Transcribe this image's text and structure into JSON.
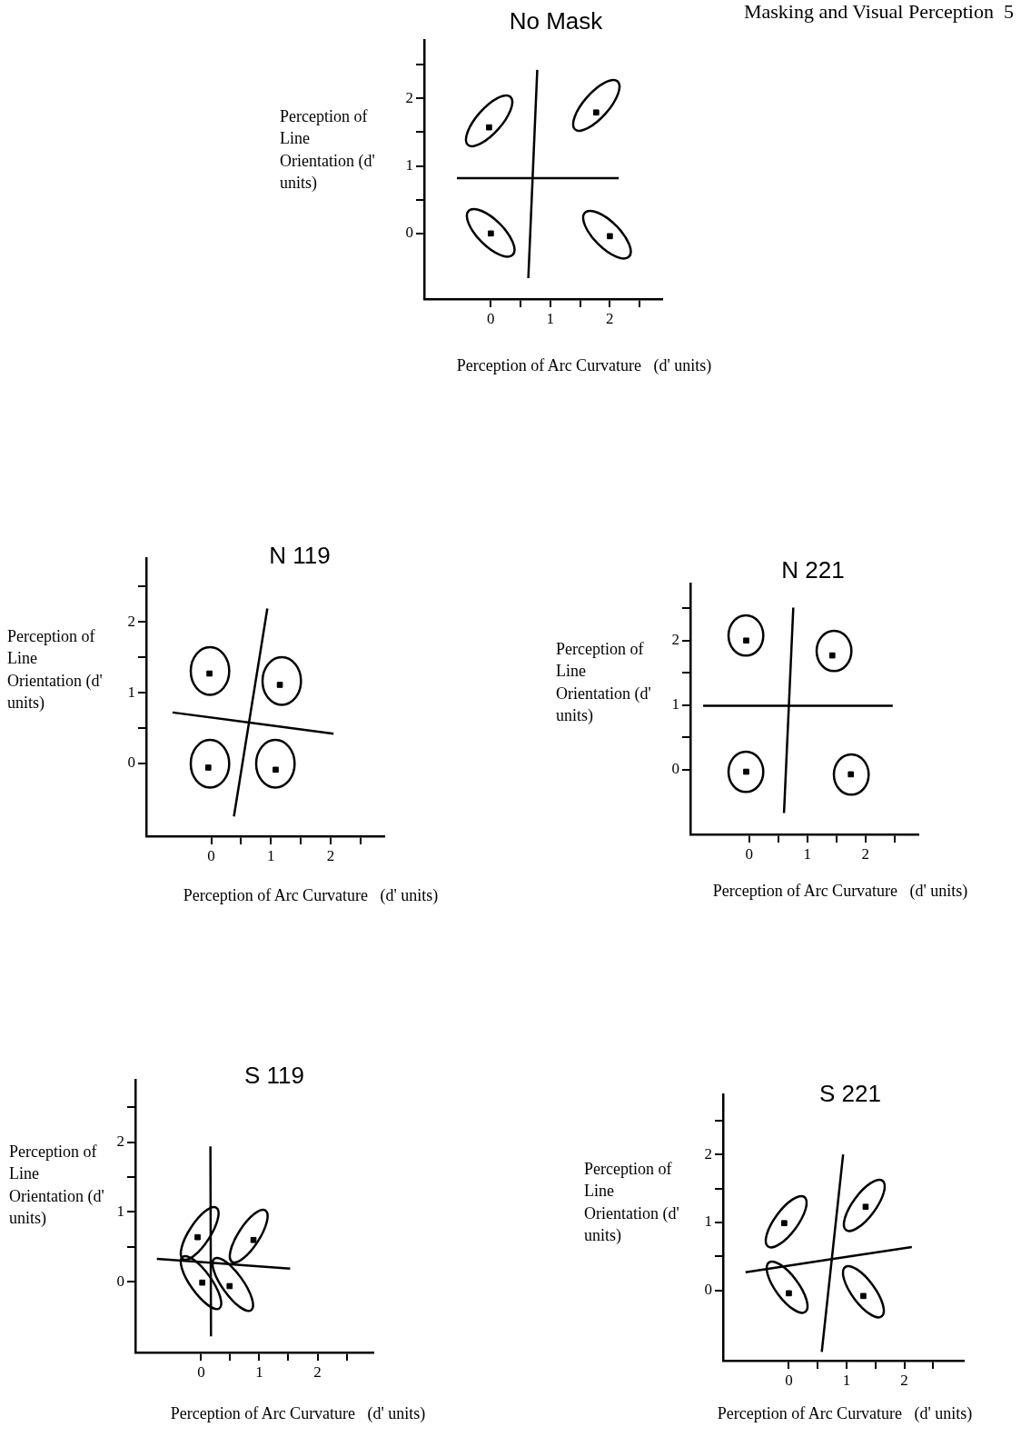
{
  "chart_data": [
    {
      "type": "scatter",
      "title": "No Mask",
      "xlabel": "Perception of Arc Curvature   (d' units)",
      "ylabel": "Perception of Line Orientation (d' units)",
      "annotations": [
        "Masking and Visual Perception  5"
      ],
      "grid": false,
      "xlim": [
        -1.12,
        2.88
      ],
      "ylim": [
        -0.97,
        2.86
      ],
      "xticks": [
        0,
        {
          "value": 0.5,
          "label": null
        },
        1,
        {
          "value": 1.5,
          "label": null
        },
        2,
        {
          "value": 2.5,
          "label": null
        }
      ],
      "yticks": [
        0,
        {
          "value": 0.5,
          "label": null
        },
        1,
        {
          "value": 1.5,
          "label": null
        },
        2,
        {
          "value": 2.5,
          "label": null
        }
      ],
      "series": [
        {
          "marker": "square",
          "color": "#000000",
          "x": [
            -0.03,
            1.77,
            0,
            2
          ],
          "values": [
            1.57,
            1.79,
            0,
            -0.04
          ]
        },
        {
          "type": "line",
          "color": "#000000",
          "x": [
            -0.57,
            2.15
          ],
          "values": [
            0.82,
            0.82
          ]
        },
        {
          "type": "line",
          "color": "#000000",
          "x": [
            0.78,
            0.63
          ],
          "values": [
            2.42,
            -0.66
          ]
        }
      ]
    },
    {
      "type": "scatter",
      "title": "N 119",
      "xlabel": "Perception of Arc Curvature   (d' units)",
      "ylabel": "Perception of Line Orientation (d' units)",
      "grid": false,
      "xlim": [
        -1.09,
        2.9
      ],
      "ylim": [
        -1.03,
        2.9
      ],
      "xticks": [
        0,
        {
          "value": 0.5,
          "label": null
        },
        1,
        {
          "value": 1.5,
          "label": null
        },
        2,
        {
          "value": 2.5,
          "label": null
        }
      ],
      "yticks": [
        0,
        {
          "value": 0.5,
          "label": null
        },
        1,
        {
          "value": 1.5,
          "label": null
        },
        2,
        {
          "value": 2.5,
          "label": null
        }
      ],
      "series": [
        {
          "marker": "square",
          "color": "#000000",
          "x": [
            -0.03,
            1.15,
            -0.05,
            1.08
          ],
          "values": [
            1.27,
            1.11,
            -0.06,
            -0.09
          ]
        },
        {
          "type": "line",
          "color": "#000000",
          "x": [
            0.94,
            0.38
          ],
          "values": [
            2.19,
            -0.75
          ]
        },
        {
          "type": "line",
          "color": "#000000",
          "x": [
            -0.65,
            2.05
          ],
          "values": [
            0.72,
            0.42
          ]
        }
      ]
    },
    {
      "type": "scatter",
      "title": "N 221",
      "xlabel": "Perception of Arc Curvature   (d' units)",
      "ylabel": "Perception of Line Orientation (d' units)",
      "grid": false,
      "xlim": [
        -1.01,
        2.91
      ],
      "ylim": [
        -1.0,
        2.88
      ],
      "xticks": [
        0,
        {
          "value": 0.5,
          "label": null
        },
        1,
        {
          "value": 1.5,
          "label": null
        },
        2,
        {
          "value": 2.5,
          "label": null
        }
      ],
      "yticks": [
        0,
        {
          "value": 0.5,
          "label": null
        },
        1,
        {
          "value": 1.5,
          "label": null
        },
        2,
        {
          "value": 2.5,
          "label": null
        }
      ],
      "series": [
        {
          "marker": "square",
          "color": "#000000",
          "x": [
            -0.05,
            1.43,
            -0.05,
            1.75
          ],
          "values": [
            2.0,
            1.77,
            -0.03,
            -0.07
          ]
        },
        {
          "type": "line",
          "color": "#000000",
          "x": [
            -0.79,
            2.47
          ],
          "values": [
            0.99,
            0.99
          ]
        },
        {
          "type": "line",
          "color": "#000000",
          "x": [
            0.76,
            0.6
          ],
          "values": [
            2.51,
            -0.67
          ]
        }
      ]
    },
    {
      "type": "scatter",
      "title": "S 119",
      "xlabel": "Perception of Arc Curvature   (d' units)",
      "ylabel": "Perception of Line Orientation (d' units)",
      "grid": false,
      "xlim": [
        -1.13,
        2.96
      ],
      "ylim": [
        -1.01,
        2.89
      ],
      "xticks": [
        0,
        {
          "value": 0.5,
          "label": null
        },
        1,
        {
          "value": 1.5,
          "label": null
        },
        2,
        {
          "value": 2.5,
          "label": null
        }
      ],
      "yticks": [
        0,
        {
          "value": 0.5,
          "label": null
        },
        1,
        {
          "value": 1.5,
          "label": null
        },
        2,
        {
          "value": 2.5,
          "label": null
        }
      ],
      "series": [
        {
          "marker": "square",
          "color": "#000000",
          "x": [
            -0.06,
            0.9,
            0.02,
            0.49
          ],
          "values": [
            0.64,
            0.6,
            -0.01,
            -0.06
          ]
        },
        {
          "type": "line",
          "color": "#000000",
          "x": [
            0.16,
            0.17
          ],
          "values": [
            1.94,
            -0.78
          ]
        },
        {
          "type": "line",
          "color": "#000000",
          "x": [
            -0.76,
            1.53
          ],
          "values": [
            0.33,
            0.19
          ]
        }
      ]
    },
    {
      "type": "scatter",
      "title": "S 221",
      "xlabel": "Perception of Arc Curvature   (d' units)",
      "ylabel": "Perception of Line Orientation (d' units)",
      "grid": false,
      "xlim": [
        -1.14,
        3.03
      ],
      "ylim": [
        -1.03,
        2.88
      ],
      "xticks": [
        0,
        {
          "value": 0.5,
          "label": null
        },
        1,
        {
          "value": 1.5,
          "label": null
        },
        2,
        {
          "value": 2.5,
          "label": null
        }
      ],
      "yticks": [
        0,
        {
          "value": 0.5,
          "label": null
        },
        1,
        {
          "value": 1.5,
          "label": null
        },
        2,
        {
          "value": 2.5,
          "label": null
        }
      ],
      "series": [
        {
          "marker": "square",
          "color": "#000000",
          "x": [
            -0.08,
            1.33,
            0,
            1.29
          ],
          "values": [
            0.99,
            1.23,
            -0.04,
            -0.08
          ]
        },
        {
          "type": "line",
          "color": "#000000",
          "x": [
            0.94,
            0.57
          ],
          "values": [
            2.0,
            -0.9
          ]
        },
        {
          "type": "line",
          "color": "#000000",
          "x": [
            -0.75,
            2.13
          ],
          "values": [
            0.27,
            0.64
          ]
        }
      ]
    }
  ]
}
